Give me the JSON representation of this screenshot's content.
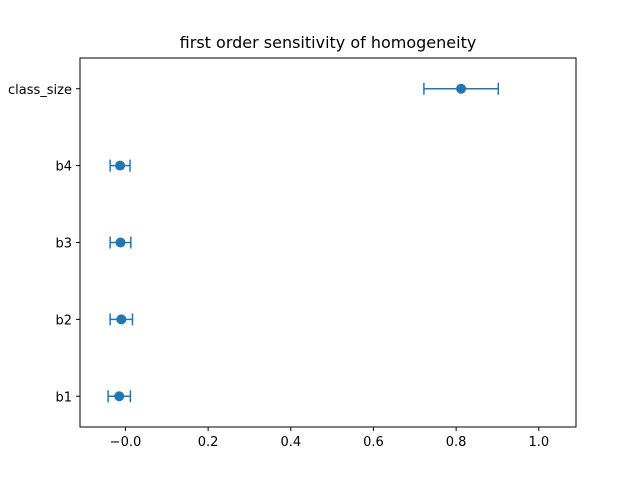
{
  "chart_data": {
    "type": "scatter",
    "title": "first order sensitivity of homogeneity",
    "xlabel": "",
    "ylabel": "",
    "xlim": [
      -0.11,
      1.09
    ],
    "xticks": [
      0.0,
      0.2,
      0.4,
      0.6,
      0.8,
      1.0
    ],
    "xtick_labels": [
      "−0.0",
      "0.2",
      "0.4",
      "0.6",
      "0.8",
      "1.0"
    ],
    "categories": [
      "b1",
      "b2",
      "b3",
      "b4",
      "class_size"
    ],
    "values": [
      -0.015,
      -0.01,
      -0.012,
      -0.013,
      0.812
    ],
    "errors": [
      0.027,
      0.027,
      0.025,
      0.024,
      0.09
    ],
    "grid": false,
    "marker_color": "#1f77b4"
  }
}
